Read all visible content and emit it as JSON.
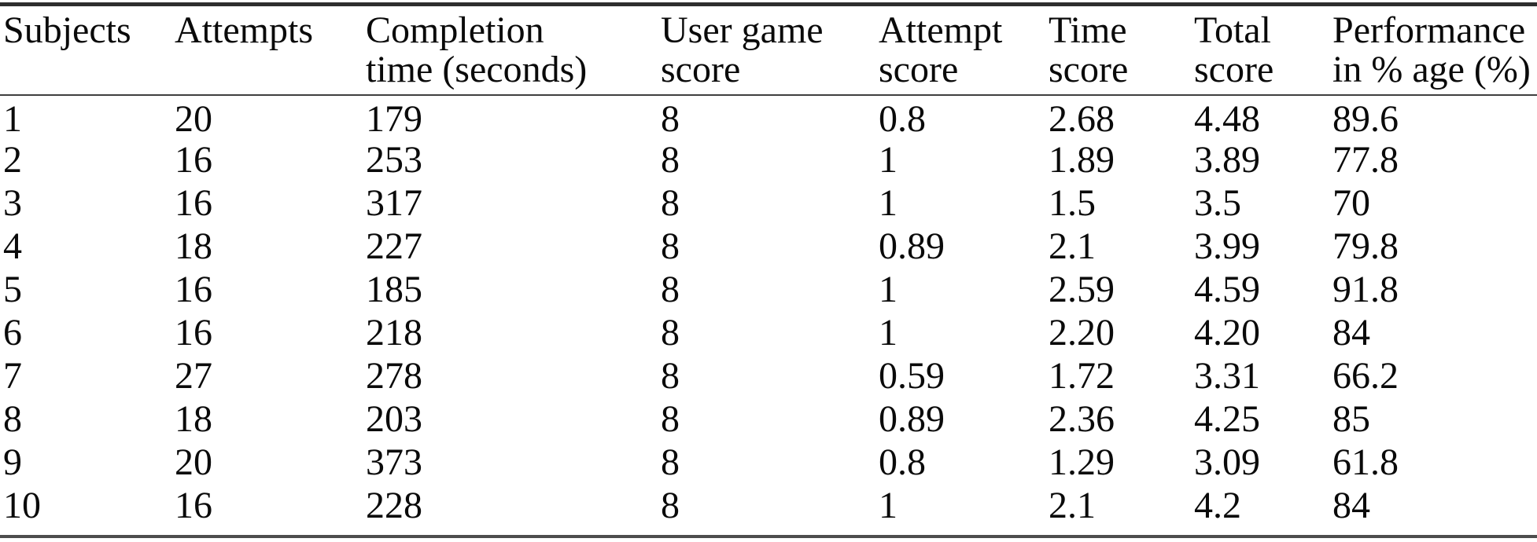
{
  "colors": {
    "text": "#0a0a0a",
    "bg": "#ffffff",
    "rule-top": "#2e2e2e",
    "rule-header": "#3f3f3f",
    "rule-bottom": "#4d4d4d"
  },
  "table": {
    "columns": [
      {
        "label": "Subjects"
      },
      {
        "label": "Attempts"
      },
      {
        "label": "Completion\ntime (seconds)"
      },
      {
        "label": "User game\nscore"
      },
      {
        "label": "Attempt\nscore"
      },
      {
        "label": "Time\nscore"
      },
      {
        "label": "Total\nscore"
      },
      {
        "label": "Performance\nin % age (%)"
      }
    ],
    "rows": [
      [
        "1",
        "20",
        "179",
        "8",
        "0.8",
        "2.68",
        "4.48",
        "89.6"
      ],
      [
        "2",
        "16",
        "253",
        "8",
        "1",
        "1.89",
        "3.89",
        "77.8"
      ],
      [
        "3",
        "16",
        "317",
        "8",
        "1",
        "1.5",
        "3.5",
        "70"
      ],
      [
        "4",
        "18",
        "227",
        "8",
        "0.89",
        "2.1",
        "3.99",
        "79.8"
      ],
      [
        "5",
        "16",
        "185",
        "8",
        "1",
        "2.59",
        "4.59",
        "91.8"
      ],
      [
        "6",
        "16",
        "218",
        "8",
        "1",
        "2.20",
        "4.20",
        "84"
      ],
      [
        "7",
        "27",
        "278",
        "8",
        "0.59",
        "1.72",
        "3.31",
        "66.2"
      ],
      [
        "8",
        "18",
        "203",
        "8",
        "0.89",
        "2.36",
        "4.25",
        "85"
      ],
      [
        "9",
        "20",
        "373",
        "8",
        "0.8",
        "1.29",
        "3.09",
        "61.8"
      ],
      [
        "10",
        "16",
        "228",
        "8",
        "1",
        "2.1",
        "4.2",
        "84"
      ]
    ]
  }
}
